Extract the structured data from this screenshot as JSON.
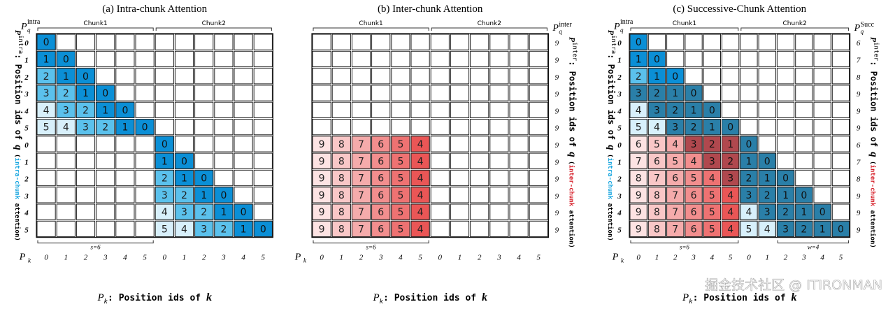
{
  "panels": [
    {
      "title": "(a) Intra-chunk Attention",
      "row_label_header": "P",
      "row_label_sub": "q",
      "row_label_sup": "intra",
      "right_header": "",
      "left_axis_label": ": Position ids of ",
      "left_axis_symbol": "q",
      "left_axis_var": "P",
      "left_axis_var_sup": "intra",
      "left_axis_paren": "intra-chunk",
      "left_axis_paren_rest": " attention)",
      "left_axis_paren_color": "#1aa7e0",
      "chunk_labels": [
        "Chunk1",
        "Chunk2"
      ],
      "row_ids": [
        "0",
        "1",
        "2",
        "3",
        "4",
        "5",
        "0",
        "1",
        "2",
        "3",
        "4",
        "5"
      ],
      "right_ids": [],
      "col_ids": [
        "0",
        "1",
        "2",
        "3",
        "4",
        "5",
        "0",
        "1",
        "2",
        "3",
        "4",
        "5"
      ],
      "bottom_braces": [
        {
          "label": "s=6",
          "from": 0,
          "to": 5
        }
      ],
      "pk_label": "P",
      "pk_sub": "k",
      "x_axis_label": ": Position ids of ",
      "x_axis_symbol": "k",
      "cells": [
        [
          0,
          0,
          "0",
          "b"
        ],
        [
          1,
          0,
          "1",
          "b"
        ],
        [
          1,
          1,
          "0",
          "b"
        ],
        [
          2,
          0,
          "2",
          "b"
        ],
        [
          2,
          1,
          "1",
          "b"
        ],
        [
          2,
          2,
          "0",
          "b"
        ],
        [
          3,
          0,
          "3",
          "b"
        ],
        [
          3,
          1,
          "2",
          "b"
        ],
        [
          3,
          2,
          "1",
          "b"
        ],
        [
          3,
          3,
          "0",
          "b"
        ],
        [
          4,
          0,
          "4",
          "b"
        ],
        [
          4,
          1,
          "3",
          "b"
        ],
        [
          4,
          2,
          "2",
          "b"
        ],
        [
          4,
          3,
          "1",
          "b"
        ],
        [
          4,
          4,
          "0",
          "b"
        ],
        [
          5,
          0,
          "5",
          "b"
        ],
        [
          5,
          1,
          "4",
          "b"
        ],
        [
          5,
          2,
          "3",
          "b"
        ],
        [
          5,
          3,
          "2",
          "b"
        ],
        [
          5,
          4,
          "1",
          "b"
        ],
        [
          5,
          5,
          "0",
          "b"
        ],
        [
          6,
          6,
          "0",
          "b"
        ],
        [
          7,
          6,
          "1",
          "b"
        ],
        [
          7,
          7,
          "0",
          "b"
        ],
        [
          8,
          6,
          "2",
          "b"
        ],
        [
          8,
          7,
          "1",
          "b"
        ],
        [
          8,
          8,
          "0",
          "b"
        ],
        [
          9,
          6,
          "3",
          "b"
        ],
        [
          9,
          7,
          "2",
          "b"
        ],
        [
          9,
          8,
          "1",
          "b"
        ],
        [
          9,
          9,
          "0",
          "b"
        ],
        [
          10,
          6,
          "4",
          "b"
        ],
        [
          10,
          7,
          "3",
          "b"
        ],
        [
          10,
          8,
          "2",
          "b"
        ],
        [
          10,
          9,
          "1",
          "b"
        ],
        [
          10,
          10,
          "0",
          "b"
        ],
        [
          11,
          6,
          "5",
          "b"
        ],
        [
          11,
          7,
          "4",
          "b"
        ],
        [
          11,
          8,
          "3",
          "b"
        ],
        [
          11,
          9,
          "2",
          "b"
        ],
        [
          11,
          10,
          "1",
          "b"
        ],
        [
          11,
          11,
          "0",
          "b"
        ]
      ]
    },
    {
      "title": "(b) Inter-chunk Attention",
      "row_label_header": "",
      "row_label_sub": "",
      "row_label_sup": "",
      "right_header": "inter",
      "left_axis_label": "",
      "left_axis_symbol": "",
      "left_axis_var": "",
      "left_axis_var_sup": "",
      "left_axis_paren": "",
      "left_axis_paren_rest": "",
      "left_axis_paren_color": "",
      "right_axis_label": ": Position ids of ",
      "right_axis_symbol": "q",
      "right_axis_var": "P",
      "right_axis_var_sup": "inter",
      "right_axis_paren": "inter-chunk",
      "right_axis_paren_rest": " attention)",
      "right_axis_paren_color": "#d6202a",
      "chunk_labels": [
        "Chunk1",
        "Chunk2"
      ],
      "row_ids": [],
      "right_ids": [
        "9",
        "9",
        "9",
        "9",
        "9",
        "9",
        "9",
        "9",
        "9",
        "9",
        "9",
        "9"
      ],
      "col_ids": [
        "0",
        "1",
        "2",
        "3",
        "4",
        "5",
        "0",
        "1",
        "2",
        "3",
        "4",
        "5"
      ],
      "bottom_braces": [
        {
          "label": "s=6",
          "from": 0,
          "to": 5
        }
      ],
      "pk_label": "P",
      "pk_sub": "k",
      "x_axis_label": ": Position ids of ",
      "x_axis_symbol": "k",
      "cells": [
        [
          6,
          0,
          "9",
          "r"
        ],
        [
          6,
          1,
          "8",
          "r"
        ],
        [
          6,
          2,
          "7",
          "r"
        ],
        [
          6,
          3,
          "6",
          "r"
        ],
        [
          6,
          4,
          "5",
          "r"
        ],
        [
          6,
          5,
          "4",
          "r"
        ],
        [
          7,
          0,
          "9",
          "r"
        ],
        [
          7,
          1,
          "8",
          "r"
        ],
        [
          7,
          2,
          "7",
          "r"
        ],
        [
          7,
          3,
          "6",
          "r"
        ],
        [
          7,
          4,
          "5",
          "r"
        ],
        [
          7,
          5,
          "4",
          "r"
        ],
        [
          8,
          0,
          "9",
          "r"
        ],
        [
          8,
          1,
          "8",
          "r"
        ],
        [
          8,
          2,
          "7",
          "r"
        ],
        [
          8,
          3,
          "6",
          "r"
        ],
        [
          8,
          4,
          "5",
          "r"
        ],
        [
          8,
          5,
          "4",
          "r"
        ],
        [
          9,
          0,
          "9",
          "r"
        ],
        [
          9,
          1,
          "8",
          "r"
        ],
        [
          9,
          2,
          "7",
          "r"
        ],
        [
          9,
          3,
          "6",
          "r"
        ],
        [
          9,
          4,
          "5",
          "r"
        ],
        [
          9,
          5,
          "4",
          "r"
        ],
        [
          10,
          0,
          "9",
          "r"
        ],
        [
          10,
          1,
          "8",
          "r"
        ],
        [
          10,
          2,
          "7",
          "r"
        ],
        [
          10,
          3,
          "6",
          "r"
        ],
        [
          10,
          4,
          "5",
          "r"
        ],
        [
          10,
          5,
          "4",
          "r"
        ],
        [
          11,
          0,
          "9",
          "r"
        ],
        [
          11,
          1,
          "8",
          "r"
        ],
        [
          11,
          2,
          "7",
          "r"
        ],
        [
          11,
          3,
          "6",
          "r"
        ],
        [
          11,
          4,
          "5",
          "r"
        ],
        [
          11,
          5,
          "4",
          "r"
        ]
      ]
    },
    {
      "title": "(c) Successive-Chunk Attention",
      "row_label_header": "P",
      "row_label_sub": "q",
      "row_label_sup": "intra",
      "right_header": "Succ",
      "left_axis_label": ": Position ids of ",
      "left_axis_symbol": "q",
      "left_axis_var": "P",
      "left_axis_var_sup": "intra",
      "left_axis_paren": "intra-chunk",
      "left_axis_paren_rest": " attention)",
      "left_axis_paren_color": "#1aa7e0",
      "right_axis_label": ": Position ids of ",
      "right_axis_symbol": "q",
      "right_axis_var": "P",
      "right_axis_var_sup": "inter",
      "right_axis_paren": "inter-chunk",
      "right_axis_paren_rest": " attention)",
      "right_axis_paren_color": "#d6202a",
      "chunk_labels": [
        "Chunk1",
        "Chunk2"
      ],
      "row_ids": [
        "0",
        "1",
        "2",
        "3",
        "4",
        "5",
        "0",
        "1",
        "2",
        "3",
        "4",
        "5"
      ],
      "right_ids": [
        "6",
        "7",
        "8",
        "9",
        "9",
        "9",
        "6",
        "7",
        "8",
        "9",
        "9",
        "9"
      ],
      "col_ids": [
        "0",
        "1",
        "2",
        "3",
        "4",
        "5",
        "0",
        "1",
        "2",
        "3",
        "4",
        "5"
      ],
      "bottom_braces": [
        {
          "label": "s=6",
          "from": 0,
          "to": 5
        },
        {
          "label": "w=4",
          "from": 8,
          "to": 11
        }
      ],
      "pk_label": "P",
      "pk_sub": "k",
      "x_axis_label": ": Position ids of ",
      "x_axis_symbol": "k",
      "cells": [
        [
          0,
          0,
          "0",
          "b"
        ],
        [
          1,
          0,
          "1",
          "b"
        ],
        [
          1,
          1,
          "0",
          "b"
        ],
        [
          2,
          0,
          "2",
          "b"
        ],
        [
          2,
          1,
          "1",
          "b"
        ],
        [
          2,
          2,
          "0",
          "b"
        ],
        [
          3,
          0,
          "3",
          "d"
        ],
        [
          3,
          1,
          "2",
          "d"
        ],
        [
          3,
          2,
          "1",
          "d"
        ],
        [
          3,
          3,
          "0",
          "d"
        ],
        [
          4,
          0,
          "4",
          "b"
        ],
        [
          4,
          1,
          "3",
          "d"
        ],
        [
          4,
          2,
          "2",
          "d"
        ],
        [
          4,
          3,
          "1",
          "d"
        ],
        [
          4,
          4,
          "0",
          "d"
        ],
        [
          5,
          0,
          "5",
          "b"
        ],
        [
          5,
          1,
          "4",
          "b"
        ],
        [
          5,
          2,
          "3",
          "d"
        ],
        [
          5,
          3,
          "2",
          "d"
        ],
        [
          5,
          4,
          "1",
          "d"
        ],
        [
          5,
          5,
          "0",
          "d"
        ],
        [
          6,
          0,
          "6",
          "r"
        ],
        [
          6,
          1,
          "5",
          "r"
        ],
        [
          6,
          2,
          "4",
          "r"
        ],
        [
          6,
          3,
          "3",
          "x"
        ],
        [
          6,
          4,
          "2",
          "x"
        ],
        [
          6,
          5,
          "1",
          "x"
        ],
        [
          6,
          6,
          "0",
          "d"
        ],
        [
          7,
          0,
          "7",
          "r"
        ],
        [
          7,
          1,
          "6",
          "r"
        ],
        [
          7,
          2,
          "5",
          "r"
        ],
        [
          7,
          3,
          "4",
          "r"
        ],
        [
          7,
          4,
          "3",
          "x"
        ],
        [
          7,
          5,
          "2",
          "x"
        ],
        [
          7,
          6,
          "1",
          "d"
        ],
        [
          7,
          7,
          "0",
          "d"
        ],
        [
          8,
          0,
          "8",
          "r"
        ],
        [
          8,
          1,
          "7",
          "r"
        ],
        [
          8,
          2,
          "6",
          "r"
        ],
        [
          8,
          3,
          "5",
          "r"
        ],
        [
          8,
          4,
          "4",
          "r"
        ],
        [
          8,
          5,
          "3",
          "x"
        ],
        [
          8,
          6,
          "2",
          "d"
        ],
        [
          8,
          7,
          "1",
          "d"
        ],
        [
          8,
          8,
          "0",
          "d"
        ],
        [
          9,
          0,
          "9",
          "r"
        ],
        [
          9,
          1,
          "8",
          "r"
        ],
        [
          9,
          2,
          "7",
          "r"
        ],
        [
          9,
          3,
          "6",
          "r"
        ],
        [
          9,
          4,
          "5",
          "r"
        ],
        [
          9,
          5,
          "4",
          "r"
        ],
        [
          9,
          6,
          "3",
          "d"
        ],
        [
          9,
          7,
          "2",
          "d"
        ],
        [
          9,
          8,
          "1",
          "d"
        ],
        [
          9,
          9,
          "0",
          "d"
        ],
        [
          10,
          0,
          "9",
          "r"
        ],
        [
          10,
          1,
          "8",
          "r"
        ],
        [
          10,
          2,
          "7",
          "r"
        ],
        [
          10,
          3,
          "6",
          "r"
        ],
        [
          10,
          4,
          "5",
          "r"
        ],
        [
          10,
          5,
          "4",
          "r"
        ],
        [
          10,
          6,
          "4",
          "b"
        ],
        [
          10,
          7,
          "3",
          "d"
        ],
        [
          10,
          8,
          "2",
          "d"
        ],
        [
          10,
          9,
          "1",
          "d"
        ],
        [
          10,
          10,
          "0",
          "d"
        ],
        [
          11,
          0,
          "9",
          "r"
        ],
        [
          11,
          1,
          "8",
          "r"
        ],
        [
          11,
          2,
          "7",
          "r"
        ],
        [
          11,
          3,
          "6",
          "r"
        ],
        [
          11,
          4,
          "5",
          "r"
        ],
        [
          11,
          5,
          "4",
          "r"
        ],
        [
          11,
          6,
          "5",
          "b"
        ],
        [
          11,
          7,
          "4",
          "b"
        ],
        [
          11,
          8,
          "3",
          "d"
        ],
        [
          11,
          9,
          "2",
          "d"
        ],
        [
          11,
          10,
          "1",
          "d"
        ],
        [
          11,
          11,
          "0",
          "d"
        ]
      ]
    }
  ],
  "watermark": "掘金技术社区 @ ITIRONMAN",
  "colors": {
    "blue_light": "#d8f0fb",
    "blue_mid": "#5bc1ec",
    "blue_strong": "#0b8fd6",
    "blue_dark": "#2a7fa8",
    "red_light": "#fde3e3",
    "red_mid": "#f5a5a5",
    "red_strong": "#ea5656",
    "mixed": "#b0484e",
    "grid": "#222222"
  }
}
